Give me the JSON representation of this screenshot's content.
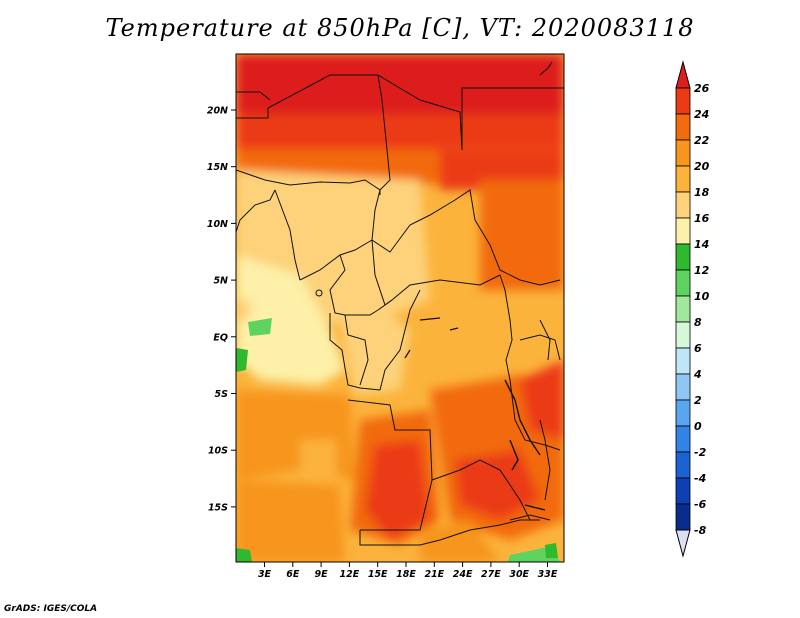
{
  "title": "Temperature at 850hPa [C], VT: 2020083118",
  "footer": "GrADS: IGES/COLA",
  "map": {
    "lat_ticks": [
      "20N",
      "15N",
      "10N",
      "5N",
      "EQ",
      "5S",
      "10S",
      "15S"
    ],
    "lon_ticks": [
      "3E",
      "6E",
      "9E",
      "12E",
      "15E",
      "18E",
      "21E",
      "24E",
      "27E",
      "30E",
      "33E"
    ]
  },
  "colorbar": {
    "labels": [
      "26",
      "24",
      "22",
      "20",
      "18",
      "16",
      "14",
      "12",
      "10",
      "8",
      "6",
      "4",
      "2",
      "0",
      "-2",
      "-4",
      "-6",
      "-8"
    ],
    "colors": [
      "#dd1e1e",
      "#eb3a14",
      "#f26b0c",
      "#f7951e",
      "#fbb33c",
      "#fdd27a",
      "#fdf0a8",
      "#2eb92e",
      "#5fd35f",
      "#a0e89c",
      "#d6f7d8",
      "#bfe6f7",
      "#8fc7f4",
      "#5aa5ef",
      "#3183e6",
      "#1d62d3",
      "#0e3fb5",
      "#082d8c",
      "#050a6e"
    ]
  }
}
